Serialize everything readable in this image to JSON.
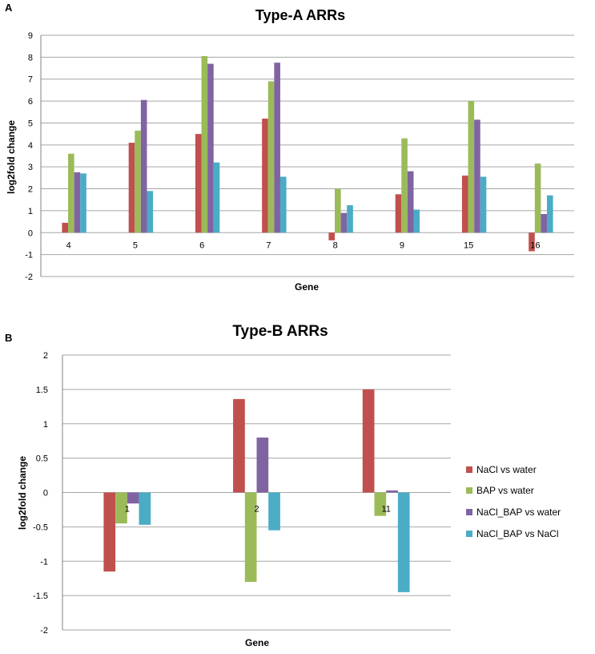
{
  "colors": {
    "nacl_vs_water": "#c0504d",
    "bap_vs_water": "#9bbb59",
    "nacl_bap_vs_water": "#8064a2",
    "nacl_bap_vs_nacl": "#4bacc6",
    "grid": "#a6a6a6",
    "axis": "#808080"
  },
  "legend": [
    "NaCl vs water",
    "BAP vs water",
    "NaCl_BAP vs water",
    "NaCl_BAP vs NaCl"
  ],
  "chart_data": [
    {
      "panel": "A",
      "type": "bar",
      "title": "Type-A ARRs",
      "xlabel": "Gene",
      "ylabel": "log2fold change",
      "ylim": [
        -2,
        9
      ],
      "yticks": [
        "-2",
        "-1",
        "0",
        "1",
        "2",
        "3",
        "4",
        "5",
        "6",
        "7",
        "8",
        "9"
      ],
      "grid": true,
      "categories": [
        "4",
        "5",
        "6",
        "7",
        "8",
        "9",
        "15",
        "16"
      ],
      "series": [
        {
          "name": "NaCl vs water",
          "values": [
            0.45,
            4.1,
            4.5,
            5.2,
            -0.35,
            1.75,
            2.6,
            -0.85
          ]
        },
        {
          "name": "BAP vs water",
          "values": [
            3.6,
            4.65,
            8.05,
            6.9,
            2.0,
            4.3,
            6.0,
            3.15
          ]
        },
        {
          "name": "NaCl_BAP vs water",
          "values": [
            2.75,
            6.05,
            7.7,
            7.75,
            0.9,
            2.8,
            5.15,
            0.85
          ]
        },
        {
          "name": "NaCl_BAP vs NaCl",
          "values": [
            2.7,
            1.9,
            3.2,
            2.55,
            1.25,
            1.05,
            2.55,
            1.7
          ]
        }
      ]
    },
    {
      "panel": "B",
      "type": "bar",
      "title": "Type-B ARRs",
      "xlabel": "Gene",
      "ylabel": "log2fold change",
      "ylim": [
        -2,
        2
      ],
      "yticks": [
        "-2",
        "-1.5",
        "-1",
        "-0.5",
        "0",
        "0.5",
        "1",
        "1.5",
        "2"
      ],
      "grid": true,
      "legend_position": "right",
      "categories": [
        "1",
        "2",
        "11"
      ],
      "series": [
        {
          "name": "NaCl vs water",
          "values": [
            -1.15,
            1.36,
            1.5
          ]
        },
        {
          "name": "BAP vs water",
          "values": [
            -0.45,
            -1.3,
            -0.34
          ]
        },
        {
          "name": "NaCl_BAP vs water",
          "values": [
            -0.16,
            0.8,
            0.03
          ]
        },
        {
          "name": "NaCl_BAP vs NaCl",
          "values": [
            -0.47,
            -0.55,
            -1.45
          ]
        }
      ]
    }
  ]
}
